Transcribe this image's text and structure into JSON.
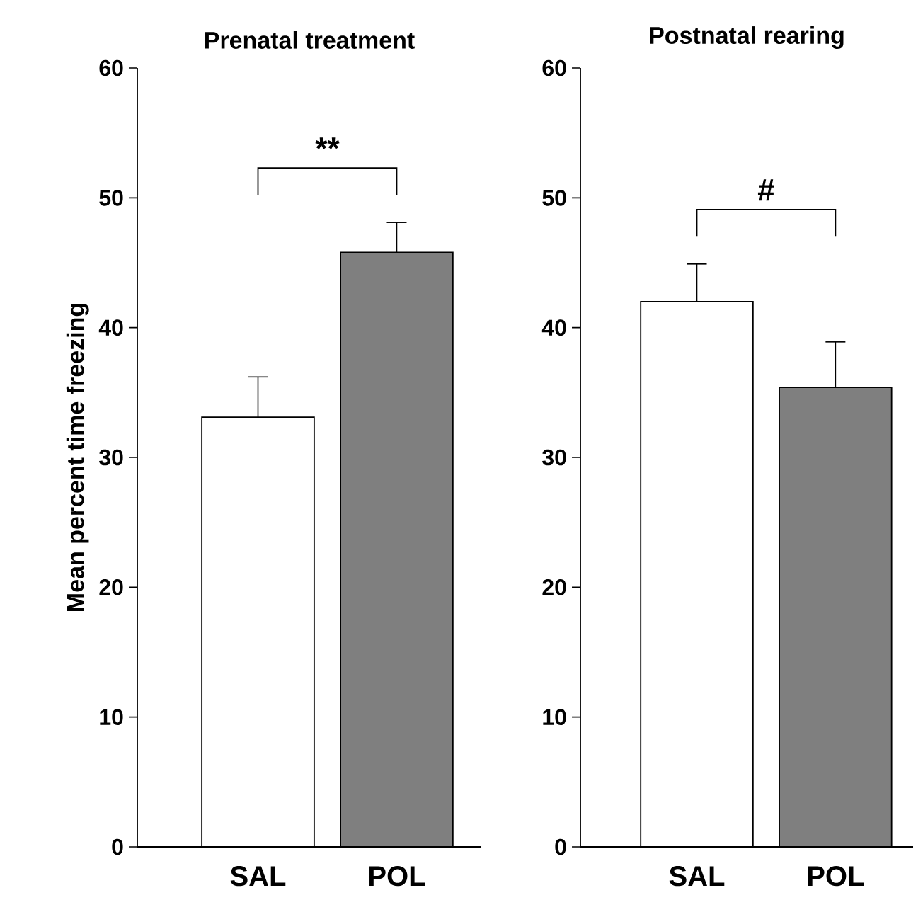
{
  "chart_data": [
    {
      "type": "bar",
      "title": "Prenatal treatment",
      "ylabel": "Mean percent time freezing",
      "categories": [
        "SAL",
        "POL"
      ],
      "values": [
        33.1,
        45.8
      ],
      "errors": [
        3.1,
        2.3
      ],
      "colors": [
        "#ffffff",
        "#7f7f7f"
      ],
      "ylim": [
        0,
        60
      ],
      "yticks": [
        0,
        10,
        20,
        30,
        40,
        50,
        60
      ],
      "annotations": [
        "**"
      ]
    },
    {
      "type": "bar",
      "title": "Postnatal rearing",
      "categories": [
        "SAL",
        "POL"
      ],
      "values": [
        42.0,
        35.4
      ],
      "errors": [
        2.9,
        3.5
      ],
      "colors": [
        "#ffffff",
        "#7f7f7f"
      ],
      "ylim": [
        0,
        60
      ],
      "yticks": [
        0,
        10,
        20,
        30,
        40,
        50,
        60
      ],
      "annotations": [
        "#"
      ]
    }
  ]
}
